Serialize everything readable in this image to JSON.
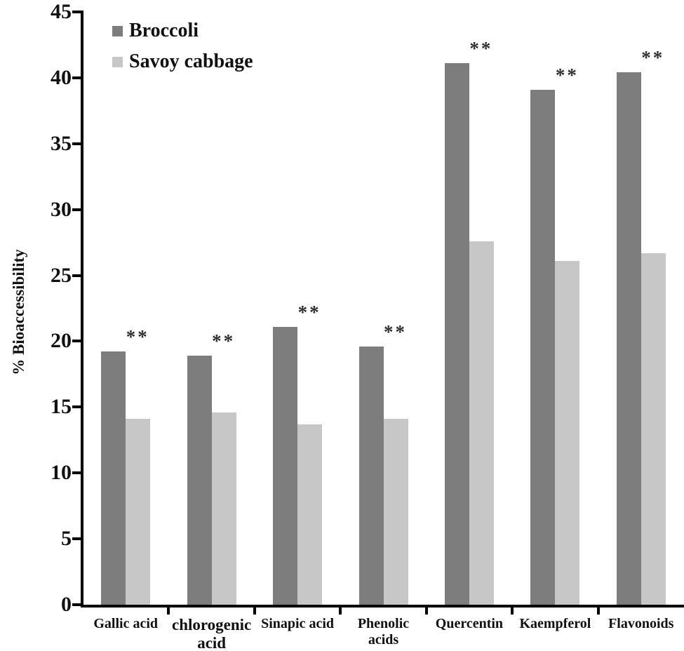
{
  "chart_data": {
    "type": "bar",
    "title": "",
    "xlabel": "",
    "ylabel": "% Bioaccessibility",
    "ylim": [
      0,
      45
    ],
    "yticks": [
      0,
      5,
      10,
      15,
      20,
      25,
      30,
      35,
      40,
      45
    ],
    "grid": false,
    "legend_position": "top-left-inside",
    "categories": [
      "Gallic acid",
      "chlorogenic acid",
      "Sinapic acid",
      "Phenolic acids",
      "Quercentin",
      "Kaempferol",
      "Flavonoids"
    ],
    "category_lines": [
      [
        "Gallic acid"
      ],
      [
        "chlorogenic",
        "acid"
      ],
      [
        "Sinapic acid"
      ],
      [
        "Phenolic",
        "acids"
      ],
      [
        "Quercentin"
      ],
      [
        "Kaempferol"
      ],
      [
        "Flavonoids"
      ]
    ],
    "series": [
      {
        "name": "Broccoli",
        "color": "#7d7d7d",
        "values": [
          19.2,
          18.9,
          21.1,
          19.6,
          41.1,
          39.1,
          40.4
        ]
      },
      {
        "name": "Savoy cabbage",
        "color": "#c7c7c7",
        "values": [
          14.1,
          14.6,
          13.7,
          14.1,
          27.6,
          26.1,
          26.7
        ]
      }
    ],
    "annotations": {
      "significance_marker": "**",
      "applies_to_series": "Broccoli",
      "per_category": [
        "**",
        "**",
        "**",
        "**",
        "**",
        "**",
        "**"
      ]
    },
    "axis_color": "#000000",
    "text_color": "#111111"
  }
}
